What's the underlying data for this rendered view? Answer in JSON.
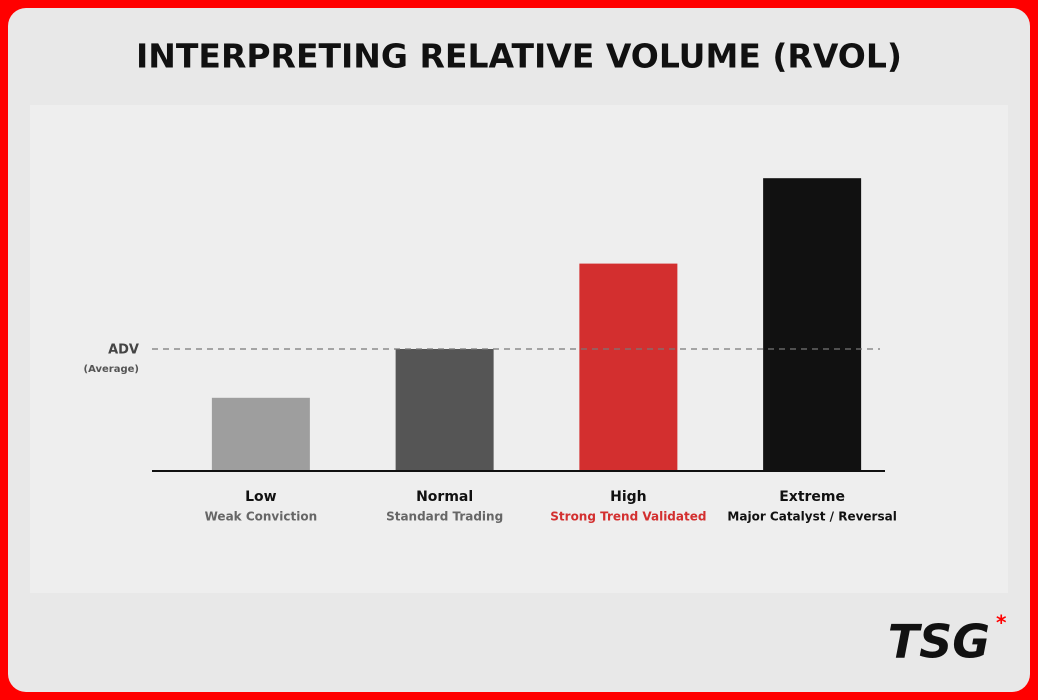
{
  "chart_data": {
    "type": "bar",
    "title": "INTERPRETING RELATIVE VOLUME (RVOL)",
    "categories": [
      "Low",
      "Normal",
      "High",
      "Extreme"
    ],
    "sublabels": [
      "Weak Conviction",
      "Standard Trading",
      "Strong Trend Validated",
      "Major Catalyst / Reversal"
    ],
    "sublabel_colors": [
      "#666666",
      "#666666",
      "#d32f2f",
      "#111111"
    ],
    "values": [
      0.6,
      1.0,
      1.7,
      2.4
    ],
    "colors": [
      "#9e9e9e",
      "#555555",
      "#d32f2f",
      "#111111"
    ],
    "ylim": [
      0,
      2.5
    ],
    "reference_line": {
      "label": "ADV",
      "sublabel": "(Average)",
      "value": 1.0
    },
    "brand": "TSG"
  }
}
